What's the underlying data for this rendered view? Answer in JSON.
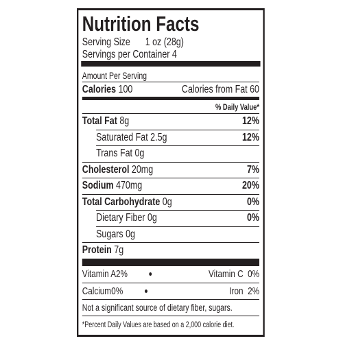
{
  "header": {
    "title": "Nutrition Facts",
    "serving_size_label": "Serving Size",
    "serving_size": "1 oz (28g)",
    "servings": "Servings per Container 4"
  },
  "amount_per_serving": "Amount Per Serving",
  "calories": {
    "label": "Calories",
    "value": "100",
    "from_fat": "Calories from Fat 60"
  },
  "daily_value_header": "% Daily Value*",
  "nutrients": [
    {
      "name": "Total Fat",
      "amount": "8g",
      "daily_value": "12%",
      "level": "main"
    },
    {
      "name": "Saturated Fat",
      "amount": "2.5g",
      "daily_value": "12%",
      "level": "sub"
    },
    {
      "name": "Trans Fat",
      "amount": "0g",
      "level": "sub"
    },
    {
      "name": "Cholesterol",
      "amount": "20mg",
      "daily_value": "7%",
      "level": "main"
    },
    {
      "name": "Sodium",
      "amount": "470mg",
      "daily_value": "20%",
      "level": "main"
    },
    {
      "name": "Total Carbohydrate",
      "amount": "0g",
      "daily_value": "0%",
      "level": "main"
    },
    {
      "name": "Dietary Fiber",
      "amount": "0g",
      "daily_value": "0%",
      "level": "sub"
    },
    {
      "name": "Sugars",
      "amount": "0g",
      "level": "sub"
    },
    {
      "name": "Protein",
      "amount": "7g",
      "level": "main"
    }
  ],
  "vitamins": [
    [
      {
        "name": "Vitamin A",
        "value": "2%"
      },
      {
        "name": "Vitamin C",
        "value": "0%"
      }
    ],
    [
      {
        "name": "Calcium",
        "value": "0%"
      },
      {
        "name": "Iron",
        "value": "2%"
      }
    ]
  ],
  "footnotes": [
    "Not a significant source of dietary fiber, sugars.",
    "*Percent Daily Values are based on a 2,000 calorie diet."
  ]
}
